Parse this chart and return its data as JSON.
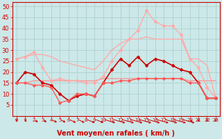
{
  "xlabel": "Vent moyen/en rafales ( km/h )",
  "ylim": [
    0,
    52
  ],
  "xlim": [
    -0.5,
    23.5
  ],
  "yticks": [
    5,
    10,
    15,
    20,
    25,
    30,
    35,
    40,
    45,
    50
  ],
  "xticks": [
    0,
    1,
    2,
    3,
    4,
    5,
    6,
    7,
    8,
    9,
    10,
    11,
    12,
    13,
    14,
    15,
    16,
    17,
    18,
    19,
    20,
    21,
    22,
    23
  ],
  "bg_color": "#cce8e8",
  "grid_color": "#aacccc",
  "series": [
    {
      "x": [
        0,
        1,
        2,
        3,
        4,
        5,
        6,
        7,
        8,
        9,
        10,
        11,
        12,
        13,
        14,
        15,
        16,
        17,
        18,
        19,
        20,
        21,
        22,
        23
      ],
      "y": [
        26,
        27,
        28,
        28,
        27,
        25,
        24,
        23,
        22,
        21,
        25,
        30,
        33,
        35,
        35,
        36,
        35,
        35,
        35,
        35,
        26,
        26,
        23,
        8
      ],
      "color": "#ffaaaa",
      "lw": 1.0,
      "marker": null,
      "ms": 0
    },
    {
      "x": [
        0,
        1,
        2,
        3,
        4,
        5,
        6,
        7,
        8,
        9,
        10,
        11,
        12,
        13,
        14,
        15,
        16,
        17,
        18,
        19,
        20,
        21,
        22,
        23
      ],
      "y": [
        26,
        27,
        29,
        22,
        16,
        17,
        16,
        16,
        15,
        15,
        18,
        25,
        30,
        35,
        39,
        48,
        43,
        41,
        41,
        37,
        26,
        22,
        13,
        8
      ],
      "color": "#ffaaaa",
      "lw": 1.0,
      "marker": "D",
      "ms": 2.0
    },
    {
      "x": [
        0,
        1,
        2,
        3,
        4,
        5,
        6,
        7,
        8,
        9,
        10,
        11,
        12,
        13,
        14,
        15,
        16,
        17,
        18,
        19,
        20,
        21,
        22,
        23
      ],
      "y": [
        15,
        20,
        19,
        15,
        14,
        10,
        7,
        9,
        10,
        9,
        15,
        21,
        26,
        23,
        27,
        23,
        26,
        25,
        23,
        21,
        20,
        15,
        8,
        8
      ],
      "color": "#cc0000",
      "lw": 1.2,
      "marker": "D",
      "ms": 2.0
    },
    {
      "x": [
        0,
        1,
        2,
        3,
        4,
        5,
        6,
        7,
        8,
        9,
        10,
        11,
        12,
        13,
        14,
        15,
        16,
        17,
        18,
        19,
        20,
        21,
        22,
        23
      ],
      "y": [
        15,
        15,
        14,
        14,
        13,
        6,
        7,
        10,
        10,
        9,
        15,
        15,
        16,
        16,
        17,
        17,
        17,
        17,
        17,
        17,
        15,
        15,
        8,
        8
      ],
      "color": "#ff5555",
      "lw": 1.0,
      "marker": "D",
      "ms": 1.8
    },
    {
      "x": [
        0,
        1,
        2,
        3,
        4,
        5,
        6,
        7,
        8,
        9,
        10,
        11,
        12,
        13,
        14,
        15,
        16,
        17,
        18,
        19,
        20,
        21,
        22,
        23
      ],
      "y": [
        15,
        15,
        16,
        16,
        16,
        16,
        16,
        16,
        16,
        16,
        17,
        17,
        17,
        17,
        17,
        17,
        17,
        17,
        17,
        17,
        16,
        16,
        16,
        16
      ],
      "color": "#ff8888",
      "lw": 0.8,
      "marker": null,
      "ms": 0
    }
  ],
  "arrow_color": "#cc0000",
  "tick_color": "#cc0000",
  "xlabel_color": "#cc0000",
  "xlabel_fontsize": 7,
  "ytick_fontsize": 6,
  "xtick_fontsize": 5,
  "arrow_angles": [
    90,
    90,
    75,
    75,
    70,
    70,
    65,
    65,
    60,
    60,
    50,
    45,
    45,
    45,
    45,
    45,
    45,
    45,
    45,
    45,
    80,
    90,
    90,
    90
  ]
}
